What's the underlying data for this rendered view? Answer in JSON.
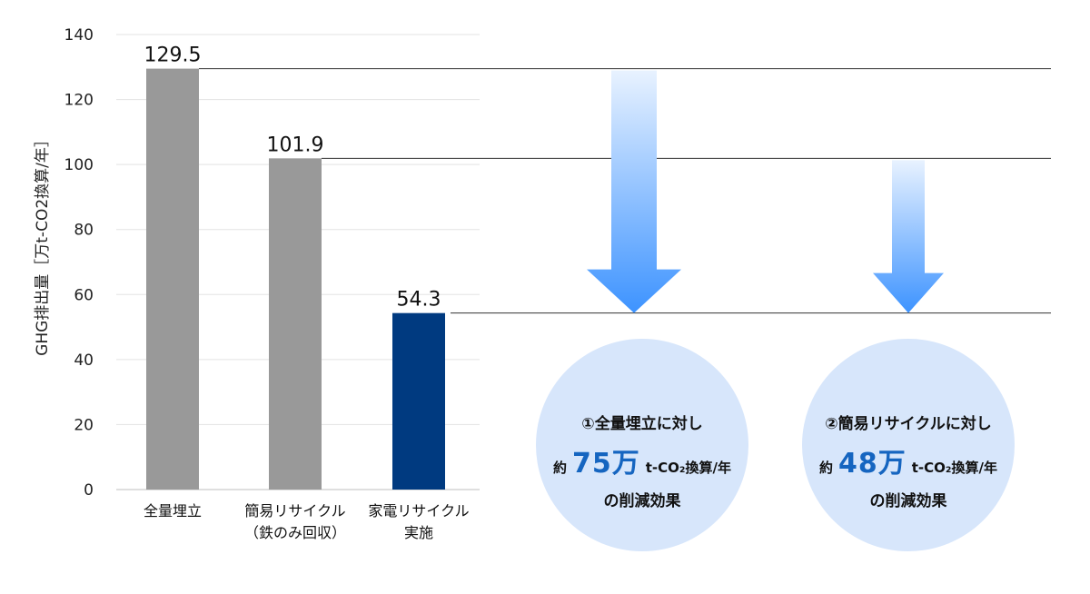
{
  "chart_data": {
    "type": "bar",
    "ylabel": "GHG排出量［万t-CO2換算/年］",
    "ylim": [
      0,
      140
    ],
    "yticks": [
      0,
      20,
      40,
      60,
      80,
      100,
      120,
      140
    ],
    "grid": true,
    "categories": [
      [
        "全量埋立"
      ],
      [
        "簡易リサイクル",
        "（鉄のみ回収）"
      ],
      [
        "家電リサイクル",
        "実施"
      ]
    ],
    "values": [
      129.5,
      101.9,
      54.3
    ],
    "value_labels": [
      "129.5",
      "101.9",
      "54.3"
    ],
    "bar_colors": [
      "#999999",
      "#999999",
      "#003a80"
    ]
  },
  "annotations": [
    {
      "line1": "①全量埋立に対し",
      "approx": "約",
      "amount": "75万",
      "unit": "t-CO₂換算/年",
      "line3": "の削減効果"
    },
    {
      "line1": "②簡易リサイクルに対し",
      "approx": "約",
      "amount": "48万",
      "unit": "t-CO₂換算/年",
      "line3": "の削減効果"
    }
  ],
  "colors": {
    "arrow_top": "#e8f2ff",
    "arrow_bottom": "#3d93ff",
    "circle_fill": "#d7e6fb",
    "highlight": "#1565c0"
  }
}
